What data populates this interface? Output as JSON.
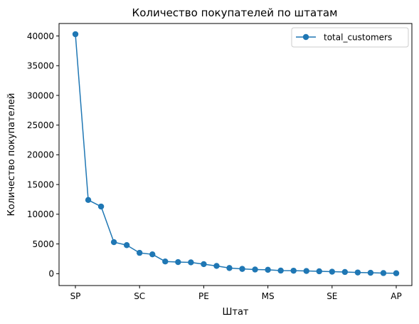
{
  "chart_data": {
    "type": "line",
    "title": "Количество покупателей по штатам",
    "xlabel": "Штат",
    "ylabel": "Количество покупателей",
    "x_tick_labels": [
      "SP",
      "SC",
      "PE",
      "MS",
      "SE",
      "AP"
    ],
    "y_ticks": [
      0,
      5000,
      10000,
      15000,
      20000,
      25000,
      30000,
      35000,
      40000
    ],
    "ylim": [
      -2000,
      42100
    ],
    "grid": false,
    "legend_position": "top-right",
    "series": [
      {
        "name": "total_customers",
        "color": "#1f77b4",
        "marker": "circle",
        "values": [
          40300,
          12400,
          11300,
          5300,
          4800,
          3500,
          3250,
          2050,
          1950,
          1900,
          1600,
          1300,
          950,
          800,
          700,
          650,
          520,
          500,
          450,
          400,
          330,
          280,
          200,
          150,
          100,
          70
        ]
      }
    ]
  }
}
